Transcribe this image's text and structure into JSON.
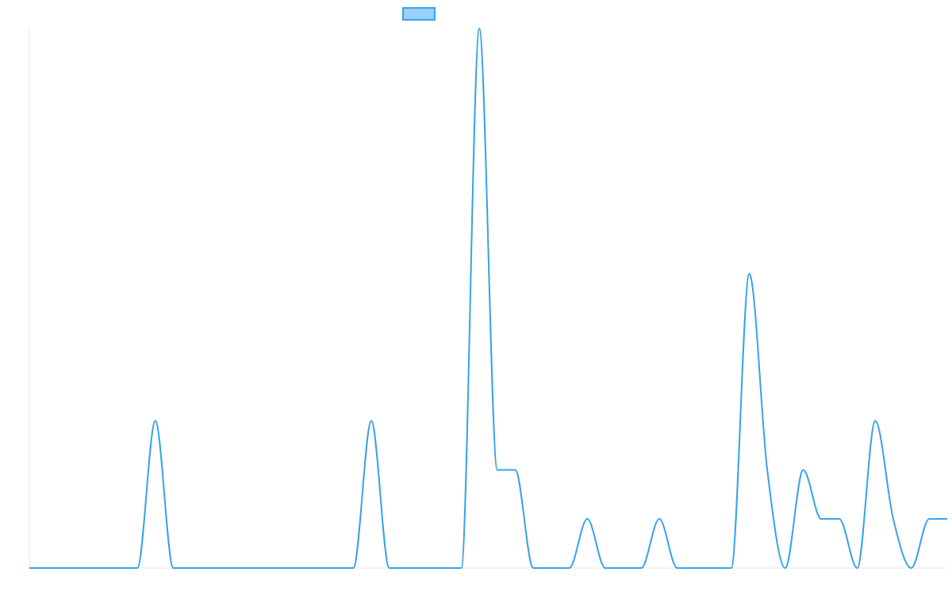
{
  "chart_data": {
    "type": "line",
    "series": [
      {
        "color": "#36a2eb",
        "values": [
          0,
          0,
          0,
          0,
          0,
          0,
          0,
          3,
          0,
          0,
          0,
          0,
          0,
          0,
          0,
          0,
          0,
          0,
          0,
          3,
          0,
          0,
          0,
          0,
          0,
          11,
          2,
          2,
          0,
          0,
          0,
          1,
          0,
          0,
          0,
          1,
          0,
          0,
          0,
          0,
          6,
          2,
          0,
          2,
          1,
          1,
          0,
          3,
          1,
          0,
          1,
          1
        ]
      }
    ],
    "ylim": [
      0,
      11
    ],
    "legend": "top",
    "grid": false
  }
}
